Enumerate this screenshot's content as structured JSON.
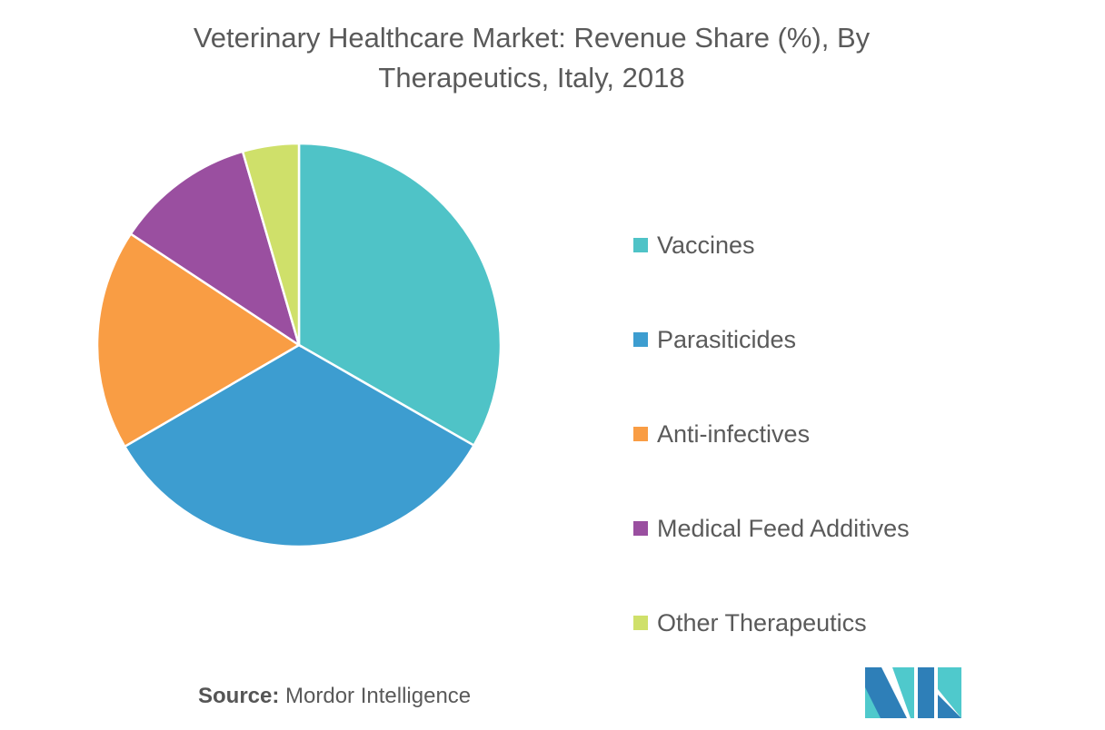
{
  "chart_data": {
    "type": "pie",
    "title": "Veterinary Healthcare Market: Revenue Share (%), By Therapeutics, Italy, 2018",
    "title_lines": [
      "Veterinary Healthcare Market: Revenue Share (%), By",
      "Therapeutics, Italy, 2018"
    ],
    "categories": [
      "Vaccines",
      "Parasiticides",
      "Anti-infectives",
      "Medical Feed Additives",
      "Other Therapeutics"
    ],
    "values": [
      33.3,
      33.3,
      17.7,
      11.2,
      4.5
    ],
    "colors": [
      "#4fc3c7",
      "#3d9dd0",
      "#f99d44",
      "#9a4fa0",
      "#cfe06a"
    ],
    "legend_position": "right"
  },
  "source": {
    "label": "Source:",
    "text": "Mordor Intelligence"
  },
  "logo": {
    "text": "Mordor Intelligence",
    "colors": [
      "#2e7fb8",
      "#4fc9cc"
    ]
  }
}
